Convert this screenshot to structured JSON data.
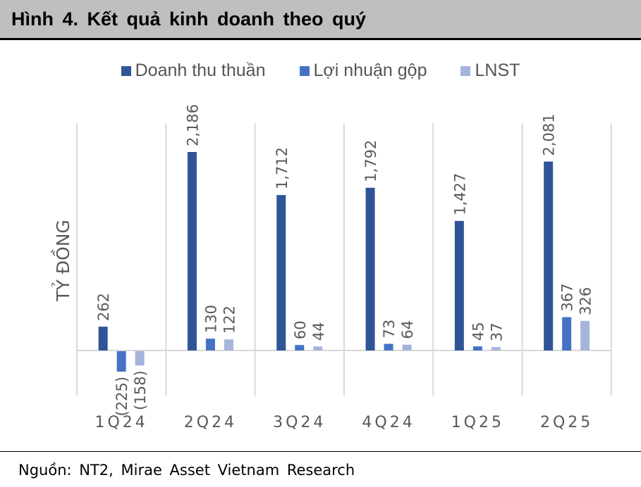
{
  "title": "Hình 4. Kết quả kinh doanh theo quý",
  "source": "Nguồn: NT2, Mirae Asset Vietnam Research",
  "chart_data": {
    "type": "bar",
    "title": "",
    "xlabel": "",
    "ylabel": "TỶ ĐỒNG",
    "categories": [
      "1Q24",
      "2Q24",
      "3Q24",
      "4Q24",
      "1Q25",
      "2Q25"
    ],
    "series": [
      {
        "name": "Doanh thu thuần",
        "color": "#2f5597",
        "values": [
          262,
          2186,
          1712,
          1792,
          1427,
          2081
        ],
        "labels": [
          "262",
          "2,186",
          "1,712",
          "1,792",
          "1,427",
          "2,081"
        ]
      },
      {
        "name": "Lợi nhuận gộp",
        "color": "#4472c4",
        "values": [
          -225,
          130,
          60,
          73,
          45,
          367
        ],
        "labels": [
          "(225)",
          "130",
          "60",
          "73",
          "45",
          "367"
        ]
      },
      {
        "name": "LNST",
        "color": "#a5b4db",
        "values": [
          -158,
          122,
          44,
          64,
          37,
          326
        ],
        "labels": [
          "(158)",
          "122",
          "44",
          "64",
          "37",
          "326"
        ]
      }
    ],
    "legend": "top",
    "grid": "vertical category separators"
  }
}
